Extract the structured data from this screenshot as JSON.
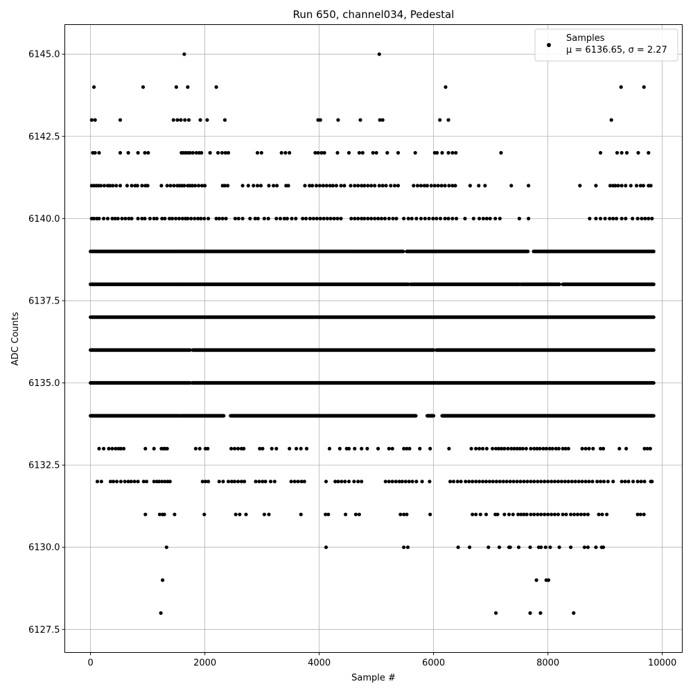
{
  "chart_data": {
    "type": "scatter",
    "title": "Run 650, channel034, Pedestal",
    "xlabel": "Sample #",
    "ylabel": "ADC Counts",
    "xlim": [
      -450,
      10350
    ],
    "ylim": [
      6126.8,
      6145.9
    ],
    "grid": true,
    "legend_position": "top-right",
    "marker_color": "#000000",
    "x_ticks": [
      0,
      2000,
      4000,
      6000,
      8000,
      10000
    ],
    "x_tick_labels": [
      "0",
      "2000",
      "4000",
      "6000",
      "8000",
      "10000"
    ],
    "y_ticks": [
      6127.5,
      6130.0,
      6132.5,
      6135.0,
      6137.5,
      6140.0,
      6142.5,
      6145.0
    ],
    "y_tick_labels": [
      "6127.5",
      "6130.0",
      "6132.5",
      "6135.0",
      "6137.5",
      "6140.0",
      "6142.5",
      "6145.0"
    ],
    "series": [
      {
        "name": "Samples",
        "stats_label": "μ = 6136.65, σ = 2.27",
        "mean": 6136.65,
        "std": 2.27,
        "levels": [
          {
            "y": 6145,
            "x": [
              1640,
              5050
            ]
          },
          {
            "y": 6144,
            "x": [
              60,
              920,
              1500,
              1700,
              2200,
              6210,
              9280,
              9680
            ]
          },
          {
            "y": 6143,
            "x": [
              20,
              80,
              520,
              1450,
              1520,
              1580,
              1650,
              1720,
              1920,
              2040,
              2350,
              3980,
              4020,
              4330,
              4720,
              5060,
              5110,
              6110,
              6260,
              9110
            ]
          },
          {
            "y": 6142,
            "x": [
              40,
              80,
              150,
              520,
              660,
              830,
              950,
              1010,
              1590,
              1620,
              1660,
              1700,
              1740,
              1790,
              1850,
              1900,
              1940,
              2090,
              2230,
              2300,
              2360,
              2410,
              2920,
              2990,
              3340,
              3410,
              3480,
              3930,
              3980,
              4040,
              4090,
              4320,
              4520,
              4700,
              4760,
              4940,
              5000,
              5190,
              5380,
              5680,
              6020,
              6060,
              6150,
              6260,
              6330,
              6390,
              7180,
              8920,
              9210,
              9290,
              9380,
              9580,
              9760
            ]
          },
          {
            "y": 6141,
            "x": [
              20,
              60,
              100,
              140,
              180,
              240,
              300,
              340,
              390,
              450,
              520,
              640,
              720,
              780,
              820,
              900,
              960,
              1000,
              1240,
              1340,
              1400,
              1460,
              1520,
              1560,
              1600,
              1640,
              1700,
              1740,
              1780,
              1830,
              1890,
              1950,
              2000,
              2310,
              2350,
              2400,
              2660,
              2760,
              2850,
              2920,
              2980,
              3120,
              3200,
              3260,
              3420,
              3460,
              3750,
              3830,
              3880,
              3950,
              4010,
              4070,
              4130,
              4190,
              4240,
              4300,
              4380,
              4440,
              4550,
              4620,
              4680,
              4740,
              4790,
              4850,
              4910,
              4970,
              5050,
              5110,
              5170,
              5250,
              5320,
              5380,
              5650,
              5720,
              5780,
              5840,
              5890,
              5960,
              6020,
              6080,
              6140,
              6200,
              6270,
              6330,
              6380,
              6640,
              6790,
              6900,
              7360,
              7660,
              8560,
              8840,
              9090,
              9140,
              9180,
              9230,
              9290,
              9360,
              9450,
              9550,
              9620,
              9670,
              9760,
              9800
            ]
          },
          {
            "y": 6140,
            "x": [
              20,
              60,
              110,
              150,
              230,
              300,
              380,
              430,
              480,
              550,
              610,
              670,
              720,
              830,
              900,
              950,
              1040,
              1110,
              1160,
              1250,
              1300,
              1380,
              1430,
              1490,
              1550,
              1610,
              1660,
              1700,
              1760,
              1820,
              1880,
              1930,
              1990,
              2060,
              2200,
              2250,
              2310,
              2370,
              2530,
              2590,
              2660,
              2790,
              2880,
              2930,
              3040,
              3110,
              3250,
              3320,
              3390,
              3440,
              3520,
              3590,
              3710,
              3770,
              3840,
              3900,
              3960,
              4020,
              4080,
              4140,
              4200,
              4260,
              4320,
              4380,
              4560,
              4620,
              4680,
              4740,
              4790,
              4850,
              4910,
              4970,
              5030,
              5090,
              5150,
              5220,
              5290,
              5350,
              5480,
              5560,
              5620,
              5700,
              5780,
              5850,
              5920,
              5990,
              6050,
              6120,
              6200,
              6260,
              6330,
              6400,
              6550,
              6700,
              6800,
              6870,
              6930,
              6990,
              7080,
              7160,
              7500,
              7660,
              8730,
              8840,
              8920,
              9000,
              9080,
              9140,
              9200,
              9290,
              9360,
              9480,
              9570,
              9640,
              9700,
              9760,
              9820
            ]
          }
        ],
        "dense_levels": [
          {
            "y": 6139,
            "ranges": [
              [
                0,
                9850
              ]
            ],
            "gaps": [
              [
                5470,
                5530
              ],
              [
                7650,
                7750
              ]
            ]
          },
          {
            "y": 6138,
            "ranges": [
              [
                0,
                9850
              ]
            ],
            "gaps": [
              [
                5560,
                5600
              ],
              [
                7500,
                7530
              ],
              [
                8200,
                8260
              ]
            ]
          },
          {
            "y": 6137,
            "ranges": [
              [
                0,
                9850
              ]
            ],
            "gaps": []
          },
          {
            "y": 6136,
            "ranges": [
              [
                0,
                9850
              ]
            ],
            "gaps": [
              [
                1740,
                1790
              ],
              [
                6000,
                6050
              ]
            ]
          },
          {
            "y": 6135,
            "ranges": [
              [
                0,
                9850
              ]
            ],
            "gaps": [
              [
                1740,
                1780
              ]
            ]
          },
          {
            "y": 6134,
            "ranges": [
              [
                0,
                9850
              ]
            ],
            "gaps": [
              [
                1560,
                1580
              ],
              [
                2330,
                2450
              ],
              [
                5690,
                5890
              ],
              [
                6000,
                6150
              ]
            ]
          }
        ],
        "sparse_levels": [
          {
            "y": 6133,
            "x": [
              150,
              230,
              320,
              380,
              440,
              490,
              530,
              580,
              960,
              1110,
              1240,
              1280,
              1300,
              1340,
              1840,
              1910,
              2010,
              2050,
              2460,
              2520,
              2580,
              2640,
              2680,
              2960,
              3010,
              3170,
              3250,
              3480,
              3600,
              3680,
              3780,
              4180,
              4360,
              4480,
              4520,
              4620,
              4740,
              4840,
              5030,
              5220,
              5280,
              5480,
              5530,
              5580,
              5760,
              5940,
              6270,
              6660,
              6740,
              6800,
              6860,
              6930,
              7030,
              7090,
              7140,
              7190,
              7240,
              7300,
              7360,
              7410,
              7460,
              7510,
              7560,
              7620,
              7700,
              7760,
              7810,
              7860,
              7920,
              7970,
              8030,
              8080,
              8140,
              8190,
              8260,
              8310,
              8360,
              8600,
              8660,
              8720,
              8790,
              8920,
              8970,
              9250,
              9370,
              9690,
              9740,
              9790
            ]
          },
          {
            "y": 6132,
            "x": [
              120,
              190,
              350,
              400,
              460,
              530,
              600,
              660,
              710,
              770,
              830,
              930,
              980,
              1110,
              1160,
              1200,
              1250,
              1300,
              1350,
              1390,
              1960,
              2010,
              2060,
              2250,
              2320,
              2410,
              2470,
              2520,
              2580,
              2640,
              2690,
              2890,
              2950,
              3010,
              3060,
              3150,
              3220,
              3510,
              3570,
              3630,
              3690,
              3740,
              4120,
              4280,
              4330,
              4390,
              4450,
              4520,
              4610,
              4680,
              4740,
              5160,
              5220,
              5280,
              5340,
              5400,
              5450,
              5510,
              5570,
              5630,
              5700,
              5800,
              5930,
              6290,
              6350,
              6420,
              6480,
              6560,
              6620,
              6680,
              6740,
              6800,
              6860,
              6920,
              6980,
              7040,
              7100,
              7160,
              7220,
              7280,
              7340,
              7400,
              7460,
              7520,
              7580,
              7640,
              7700,
              7760,
              7820,
              7880,
              7940,
              8000,
              8060,
              8120,
              8180,
              8240,
              8300,
              8360,
              8420,
              8480,
              8540,
              8600,
              8660,
              8720,
              8780,
              8860,
              8920,
              8980,
              9050,
              9140,
              9290,
              9350,
              9410,
              9490,
              9570,
              9630,
              9690,
              9800,
              9820
            ]
          },
          {
            "y": 6131,
            "x": [
              960,
              1210,
              1260,
              1290,
              1470,
              1990,
              2540,
              2610,
              2720,
              3040,
              3120,
              3680,
              4110,
              4160,
              4460,
              4640,
              4700,
              5420,
              5480,
              5530,
              5940,
              6680,
              6740,
              6820,
              6920,
              7080,
              7120,
              7240,
              7320,
              7390,
              7480,
              7530,
              7580,
              7630,
              7700,
              7760,
              7820,
              7880,
              7940,
              8000,
              8060,
              8120,
              8180,
              8260,
              8320,
              8400,
              8460,
              8520,
              8580,
              8640,
              8700,
              8890,
              8950,
              9030,
              9570,
              9620,
              9680
            ]
          },
          {
            "y": 6130,
            "x": [
              1330,
              4120,
              5480,
              5550,
              6430,
              6630,
              6960,
              7150,
              7320,
              7340,
              7490,
              7690,
              7840,
              7880,
              7960,
              8040,
              8200,
              8400,
              8640,
              8700,
              8840,
              8940,
              8970
            ]
          },
          {
            "y": 6129,
            "x": [
              1260,
              7800,
              7970,
              8010
            ]
          },
          {
            "y": 6128,
            "x": [
              1230,
              7090,
              7690,
              7870,
              8450
            ]
          }
        ]
      }
    ]
  }
}
